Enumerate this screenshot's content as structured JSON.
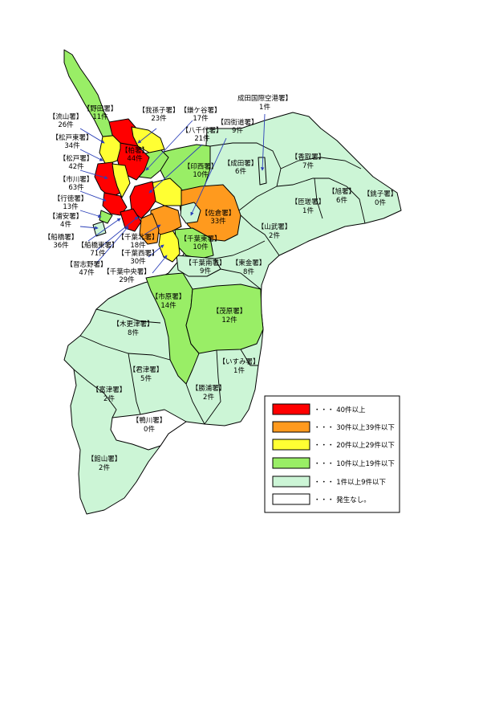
{
  "colors": {
    "red": "#ff0000",
    "orange": "#ff9a1e",
    "yellow": "#ffff33",
    "green": "#99ee66",
    "pale": "#ccf5d6",
    "white": "#ffffff",
    "arrow": "#2a3fb8"
  },
  "stations": [
    {
      "id": "noda",
      "name": "【野田署】",
      "count": "11件"
    },
    {
      "id": "nagareyama",
      "name": "【流山署】",
      "count": "26件"
    },
    {
      "id": "abiko",
      "name": "【我孫子署】",
      "count": "23件"
    },
    {
      "id": "kamagaya",
      "name": "【鎌ケ谷署】",
      "count": "17件"
    },
    {
      "id": "narita_airport",
      "name": "成田国際空港署】",
      "count": "1件"
    },
    {
      "id": "yotsukaido",
      "name": "【四街道署】",
      "count": "9件"
    },
    {
      "id": "yachiyo",
      "name": "【八千代署】",
      "count": "21件"
    },
    {
      "id": "matsudohigashi",
      "name": "【松戸東署】",
      "count": "34件"
    },
    {
      "id": "kashiwa",
      "name": "【柏署】",
      "count": "44件"
    },
    {
      "id": "matsudo",
      "name": "【松戸署】",
      "count": "42件"
    },
    {
      "id": "ichikawa",
      "name": "【市川署】",
      "count": "63件"
    },
    {
      "id": "gyotoku",
      "name": "【行徳署】",
      "count": "13件"
    },
    {
      "id": "urayasu",
      "name": "【浦安署】",
      "count": "4件"
    },
    {
      "id": "funabashi",
      "name": "【船橋署】",
      "count": "36件"
    },
    {
      "id": "funabashihigashi",
      "name": "【船橋東署】",
      "count": "71件"
    },
    {
      "id": "narashino",
      "name": "【習志野署】",
      "count": "47件"
    },
    {
      "id": "inzai",
      "name": "【印西署】",
      "count": "10件"
    },
    {
      "id": "narita",
      "name": "【成田署】",
      "count": "6件"
    },
    {
      "id": "katori",
      "name": "【香取署】",
      "count": "7件"
    },
    {
      "id": "sakura",
      "name": "【佐倉署】",
      "count": "33件"
    },
    {
      "id": "chibakita",
      "name": "【千葉北署】",
      "count": "18件"
    },
    {
      "id": "chibanishi",
      "name": "【千葉西署】",
      "count": "30件"
    },
    {
      "id": "chibachuo",
      "name": "【千葉中央署】",
      "count": "29件"
    },
    {
      "id": "chibahigashi",
      "name": "【千葉東署】",
      "count": "10件"
    },
    {
      "id": "chibaminami",
      "name": "【千葉南署】",
      "count": "9件"
    },
    {
      "id": "sosa",
      "name": "【匝瑳署】",
      "count": "1件"
    },
    {
      "id": "asahi",
      "name": "【旭署】",
      "count": "6件"
    },
    {
      "id": "choshi",
      "name": "【銚子署】",
      "count": "0件"
    },
    {
      "id": "sammu",
      "name": "【山武署】",
      "count": "2件"
    },
    {
      "id": "togane",
      "name": "【東金署】",
      "count": "8件"
    },
    {
      "id": "ichihara",
      "name": "【市原署】",
      "count": "14件"
    },
    {
      "id": "mobara",
      "name": "【茂原署】",
      "count": "12件"
    },
    {
      "id": "kisarazu",
      "name": "【木更津署】",
      "count": "8件"
    },
    {
      "id": "kimitsu",
      "name": "【君津署】",
      "count": "5件"
    },
    {
      "id": "isumi",
      "name": "【いすみ署】",
      "count": "1件"
    },
    {
      "id": "futtsu",
      "name": "【富津署】",
      "count": "2件"
    },
    {
      "id": "katsuura",
      "name": "【勝浦署】",
      "count": "2件"
    },
    {
      "id": "kamogawa",
      "name": "【鴨川署】",
      "count": "0件"
    },
    {
      "id": "tateyama",
      "name": "【館山署】",
      "count": "2件"
    }
  ],
  "legend": [
    {
      "color": "#ff0000",
      "label": "・・・ 40件以上"
    },
    {
      "color": "#ff9a1e",
      "label": "・・・ 30件以上39件以下"
    },
    {
      "color": "#ffff33",
      "label": "・・・ 20件以上29件以下"
    },
    {
      "color": "#99ee66",
      "label": "・・・ 10件以上19件以下"
    },
    {
      "color": "#ccf5d6",
      "label": "・・・ 1件以上9件以下"
    },
    {
      "color": "#ffffff",
      "label": "・・・ 発生なし。"
    }
  ]
}
